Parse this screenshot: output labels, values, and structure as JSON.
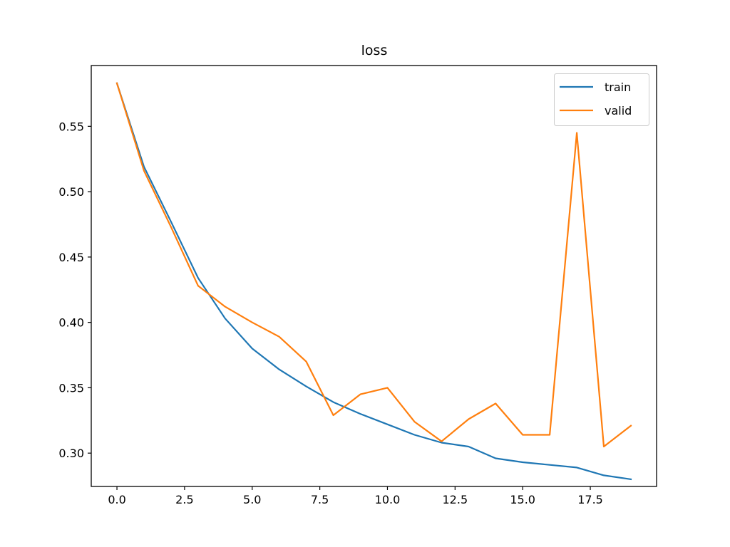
{
  "chart_data": {
    "type": "line",
    "title": "loss",
    "xlabel": "",
    "ylabel": "",
    "x": [
      0,
      1,
      2,
      3,
      4,
      5,
      6,
      7,
      8,
      9,
      10,
      11,
      12,
      13,
      14,
      15,
      16,
      17,
      18,
      19
    ],
    "series": [
      {
        "name": "train",
        "color": "#1f77b4",
        "values": [
          0.583,
          0.519,
          0.477,
          0.434,
          0.403,
          0.38,
          0.364,
          0.351,
          0.339,
          0.33,
          0.322,
          0.314,
          0.308,
          0.305,
          0.296,
          0.293,
          0.291,
          0.289,
          0.283,
          0.28
        ]
      },
      {
        "name": "valid",
        "color": "#ff7f0e",
        "values": [
          0.583,
          0.516,
          0.473,
          0.428,
          0.412,
          0.4,
          0.389,
          0.37,
          0.329,
          0.345,
          0.35,
          0.324,
          0.309,
          0.326,
          0.338,
          0.314,
          0.314,
          0.545,
          0.305,
          0.321
        ]
      }
    ],
    "xlim": [
      -0.95,
      19.95
    ],
    "ylim": [
      0.2745,
      0.5965
    ],
    "xticks": [
      0.0,
      2.5,
      5.0,
      7.5,
      10.0,
      12.5,
      15.0,
      17.5
    ],
    "xtick_labels": [
      "0.0",
      "2.5",
      "5.0",
      "7.5",
      "10.0",
      "12.5",
      "15.0",
      "17.5"
    ],
    "yticks": [
      0.3,
      0.35,
      0.4,
      0.45,
      0.5,
      0.55
    ],
    "ytick_labels": [
      "0.30",
      "0.35",
      "0.40",
      "0.45",
      "0.50",
      "0.55"
    ],
    "grid": false,
    "legend_position": "upper right"
  }
}
